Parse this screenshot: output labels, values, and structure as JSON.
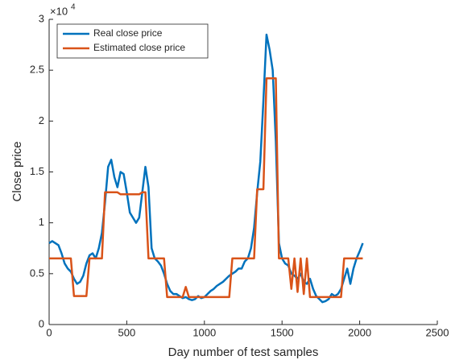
{
  "chart_data": {
    "type": "line",
    "xlabel": "Day number of test samples",
    "ylabel": "Close price",
    "y_multiplier": {
      "base": "×10",
      "exponent": "4"
    },
    "xlim": [
      0,
      2500
    ],
    "xticks": [
      0,
      500,
      1000,
      1500,
      2000,
      2500
    ],
    "ylim": [
      0,
      3
    ],
    "yticks": [
      0,
      0.5,
      1,
      1.5,
      2,
      2.5,
      3
    ],
    "legend": "upper left",
    "x": [
      0,
      20,
      40,
      60,
      80,
      100,
      120,
      140,
      160,
      180,
      200,
      220,
      240,
      260,
      280,
      300,
      320,
      340,
      360,
      380,
      400,
      420,
      440,
      460,
      480,
      500,
      520,
      540,
      560,
      580,
      600,
      620,
      640,
      660,
      680,
      700,
      720,
      740,
      760,
      780,
      800,
      820,
      840,
      860,
      880,
      900,
      920,
      940,
      960,
      980,
      1000,
      1020,
      1040,
      1060,
      1080,
      1100,
      1120,
      1140,
      1160,
      1180,
      1200,
      1220,
      1240,
      1260,
      1280,
      1300,
      1320,
      1340,
      1360,
      1380,
      1400,
      1420,
      1440,
      1460,
      1480,
      1500,
      1520,
      1540,
      1560,
      1580,
      1600,
      1620,
      1640,
      1660,
      1680,
      1700,
      1720,
      1740,
      1760,
      1780,
      1800,
      1820,
      1840,
      1860,
      1880,
      1900,
      1920,
      1940,
      1960,
      1980,
      2000,
      2020
    ],
    "series": [
      {
        "name": "Real close price",
        "color": "#0072bd",
        "values": [
          0.8,
          0.82,
          0.8,
          0.78,
          0.7,
          0.6,
          0.55,
          0.52,
          0.45,
          0.4,
          0.42,
          0.48,
          0.6,
          0.68,
          0.7,
          0.65,
          0.75,
          0.9,
          1.2,
          1.55,
          1.62,
          1.45,
          1.35,
          1.5,
          1.48,
          1.3,
          1.1,
          1.05,
          1.0,
          1.05,
          1.3,
          1.55,
          1.35,
          0.75,
          0.65,
          0.62,
          0.58,
          0.5,
          0.4,
          0.33,
          0.3,
          0.3,
          0.28,
          0.26,
          0.27,
          0.25,
          0.24,
          0.25,
          0.28,
          0.26,
          0.27,
          0.3,
          0.33,
          0.35,
          0.38,
          0.4,
          0.42,
          0.45,
          0.48,
          0.5,
          0.52,
          0.55,
          0.55,
          0.62,
          0.65,
          0.75,
          0.95,
          1.3,
          1.6,
          2.2,
          2.85,
          2.7,
          2.5,
          1.8,
          0.8,
          0.65,
          0.6,
          0.58,
          0.5,
          0.48,
          0.45,
          0.5,
          0.42,
          0.4,
          0.45,
          0.35,
          0.28,
          0.25,
          0.22,
          0.23,
          0.25,
          0.3,
          0.28,
          0.3,
          0.35,
          0.45,
          0.55,
          0.4,
          0.55,
          0.65,
          0.72,
          0.8
        ]
      },
      {
        "name": "Estimated close price",
        "color": "#d95319",
        "values": [
          0.65,
          0.65,
          0.65,
          0.65,
          0.65,
          0.65,
          0.65,
          0.65,
          0.28,
          0.28,
          0.28,
          0.28,
          0.28,
          0.65,
          0.65,
          0.65,
          0.65,
          0.65,
          1.3,
          1.3,
          1.3,
          1.3,
          1.3,
          1.28,
          1.28,
          1.28,
          1.28,
          1.28,
          1.28,
          1.28,
          1.3,
          1.3,
          0.65,
          0.65,
          0.65,
          0.65,
          0.65,
          0.65,
          0.27,
          0.27,
          0.27,
          0.27,
          0.27,
          0.27,
          0.37,
          0.27,
          0.27,
          0.27,
          0.27,
          0.27,
          0.27,
          0.27,
          0.27,
          0.27,
          0.27,
          0.27,
          0.27,
          0.27,
          0.27,
          0.65,
          0.65,
          0.65,
          0.65,
          0.65,
          0.65,
          0.65,
          0.65,
          1.33,
          1.33,
          1.33,
          2.42,
          2.42,
          2.42,
          2.42,
          0.65,
          0.65,
          0.65,
          0.65,
          0.35,
          0.65,
          0.32,
          0.65,
          0.3,
          0.65,
          0.27,
          0.27,
          0.27,
          0.27,
          0.27,
          0.27,
          0.27,
          0.27,
          0.27,
          0.27,
          0.27,
          0.65,
          0.65,
          0.65,
          0.65,
          0.65,
          0.65,
          0.65
        ]
      }
    ]
  }
}
